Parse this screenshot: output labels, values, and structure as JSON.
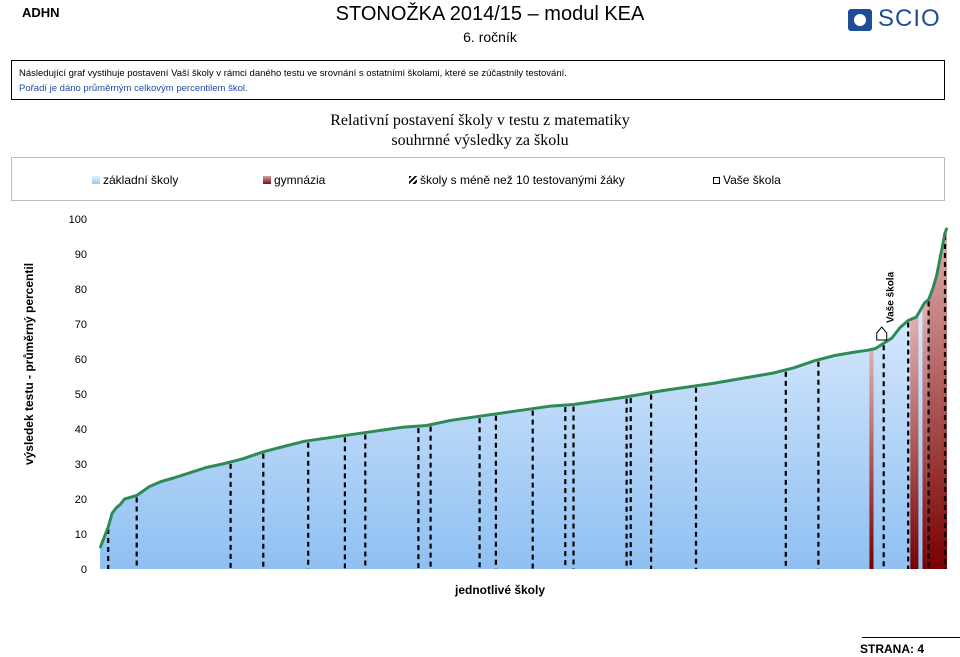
{
  "header": {
    "left_code": "ADHN",
    "title": "STONOŽKA 2014/15 – modul KEA",
    "subtitle": "6. ročník",
    "logo_text": "SCIO"
  },
  "info": {
    "line1": "Následující graf vystihuje postavení Vaší školy v rámci daného testu ve srovnání s ostatními školami, které se zúčastnily testování.",
    "line2": "Pořadí je dáno průměrným celkovým percentilem škol."
  },
  "chart_data": {
    "type": "area",
    "title": "Relativní postavení školy v testu z matematiky",
    "subtitle": "souhrnné výsledky za školu",
    "xlabel": "jednotlivé školy",
    "ylabel": "výsledek testu - průměrný percentil",
    "ylim": [
      0,
      100
    ],
    "yticks": [
      0,
      10,
      20,
      30,
      40,
      50,
      60,
      70,
      80,
      90,
      100
    ],
    "legend": [
      {
        "name": "základní školy",
        "icon": "light-blue-gradient-swatch"
      },
      {
        "name": "gymnázia",
        "icon": "dark-red-gradient-swatch"
      },
      {
        "name": "školy s méně než 10 testovanými žáky",
        "icon": "hatched-swatch"
      },
      {
        "name": "Vaše škola",
        "icon": "school-house-swatch"
      }
    ],
    "legend_position": "top",
    "grid": false,
    "colors": {
      "line": "#2e8b57",
      "zs_top": "#e8f2ff",
      "zs_bottom": "#9cc8f5",
      "gym_top": "#d8a0a0",
      "gym_bottom": "#7a0000"
    },
    "n_schools": 206,
    "curve_points": [
      [
        0,
        6
      ],
      [
        1,
        9
      ],
      [
        2,
        12
      ],
      [
        3,
        16
      ],
      [
        4,
        17.5
      ],
      [
        5,
        18.5
      ],
      [
        6,
        20
      ],
      [
        9,
        21
      ],
      [
        12,
        23.5
      ],
      [
        15,
        25
      ],
      [
        18,
        26
      ],
      [
        22,
        27.5
      ],
      [
        26,
        29
      ],
      [
        30,
        30
      ],
      [
        35,
        31.5
      ],
      [
        40,
        33.5
      ],
      [
        45,
        35
      ],
      [
        50,
        36.5
      ],
      [
        56,
        37.5
      ],
      [
        62,
        38.5
      ],
      [
        68,
        39.5
      ],
      [
        74,
        40.5
      ],
      [
        80,
        41
      ],
      [
        86,
        42.5
      ],
      [
        92,
        43.5
      ],
      [
        98,
        44.5
      ],
      [
        104,
        45.5
      ],
      [
        110,
        46.5
      ],
      [
        116,
        47
      ],
      [
        122,
        48
      ],
      [
        128,
        49
      ],
      [
        133,
        50
      ],
      [
        138,
        51
      ],
      [
        144,
        52
      ],
      [
        150,
        53
      ],
      [
        155,
        54
      ],
      [
        160,
        55
      ],
      [
        165,
        56
      ],
      [
        170,
        57.5
      ],
      [
        175,
        59.5
      ],
      [
        180,
        61
      ],
      [
        185,
        62
      ],
      [
        188,
        62.5
      ],
      [
        190,
        63
      ],
      [
        192,
        64.5
      ],
      [
        194,
        66
      ],
      [
        196,
        69
      ],
      [
        198,
        71
      ],
      [
        200,
        72
      ],
      [
        202,
        76
      ],
      [
        203,
        77
      ],
      [
        204,
        80
      ],
      [
        205,
        84
      ],
      [
        206,
        90
      ],
      [
        207,
        96
      ],
      [
        207.5,
        97.5
      ]
    ],
    "gymnazia_indices": [
      189,
      199,
      200,
      202,
      203,
      204,
      205,
      206,
      207
    ],
    "small_school_indices": [
      2,
      9,
      32,
      40,
      51,
      60,
      65,
      78,
      81,
      93,
      97,
      106,
      114,
      116,
      129,
      130,
      135,
      146,
      168,
      176,
      192,
      198,
      203,
      207
    ],
    "your_school": {
      "label": "Vaše škola",
      "index": 192,
      "percentile": 64
    }
  },
  "footer": {
    "page_label": "STRANA: 4"
  }
}
